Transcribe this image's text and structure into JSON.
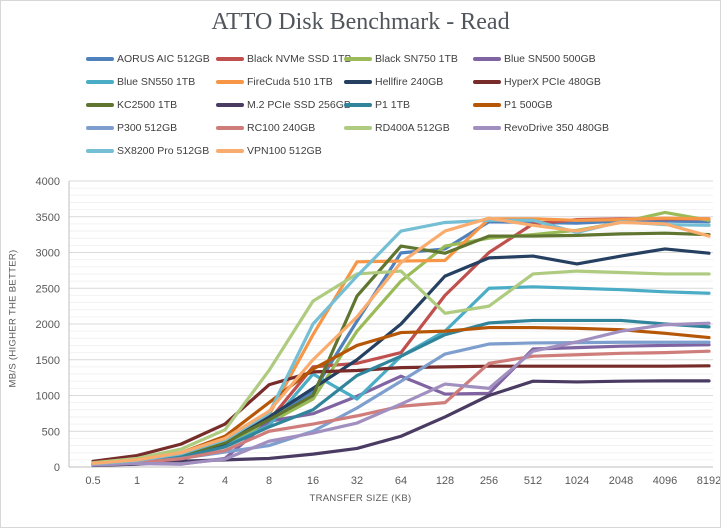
{
  "chart_data": {
    "type": "line",
    "title": "ATTO Disk Benchmark - Read",
    "xlabel": "TRANSFER SIZE (KB)",
    "ylabel": "MB/S (HIGHER THE BETTER)",
    "legend_position": "top",
    "grid": true,
    "ylim": [
      0,
      4000
    ],
    "y_major_step": 500,
    "y_minor_step": 100,
    "x": [
      "0.5",
      "1",
      "2",
      "4",
      "8",
      "16",
      "32",
      "64",
      "128",
      "256",
      "512",
      "1024",
      "2048",
      "4096",
      "8192"
    ],
    "series": [
      {
        "name": "AORUS AIC 512GB",
        "color": "#4F81BD",
        "values": [
          45,
          90,
          180,
          360,
          700,
          1050,
          2040,
          2995,
          3050,
          3430,
          3420,
          3410,
          3440,
          3440,
          3430
        ]
      },
      {
        "name": "Black NVMe SSD 1TB",
        "color": "#C0504D",
        "values": [
          40,
          80,
          160,
          330,
          650,
          1400,
          1450,
          1600,
          2400,
          3000,
          3400,
          3460,
          3470,
          3470,
          3470
        ]
      },
      {
        "name": "Black SN750 1TB",
        "color": "#9BBB59",
        "values": [
          40,
          80,
          160,
          320,
          620,
          950,
          1900,
          2600,
          3090,
          3200,
          3250,
          3310,
          3420,
          3560,
          3450
        ]
      },
      {
        "name": "Blue SN500 500GB",
        "color": "#8064A2",
        "values": [
          25,
          50,
          40,
          120,
          640,
          745,
          990,
          1270,
          1020,
          1030,
          1650,
          1670,
          1690,
          1700,
          1710
        ]
      },
      {
        "name": "Blue SN550 1TB",
        "color": "#4BACC6",
        "values": [
          35,
          70,
          140,
          290,
          580,
          1300,
          950,
          1550,
          1900,
          2500,
          2520,
          2500,
          2480,
          2450,
          2430
        ]
      },
      {
        "name": "FireCuda 510 1TB",
        "color": "#F79646",
        "values": [
          45,
          90,
          180,
          370,
          730,
          1850,
          2870,
          2880,
          2890,
          3470,
          3470,
          3450,
          3460,
          3480,
          3470
        ]
      },
      {
        "name": "Hellfire 240GB",
        "color": "#254061",
        "values": [
          40,
          75,
          150,
          330,
          700,
          1100,
          1500,
          2000,
          2670,
          2925,
          2950,
          2840,
          2950,
          3050,
          2990
        ]
      },
      {
        "name": "HyperX PCIe 480GB",
        "color": "#772C2A",
        "values": [
          80,
          160,
          320,
          600,
          1150,
          1330,
          1350,
          1390,
          1400,
          1410,
          1410,
          1410,
          1410,
          1410,
          1415
        ]
      },
      {
        "name": "KC2500 1TB",
        "color": "#5F7530",
        "values": [
          40,
          80,
          165,
          340,
          660,
          1000,
          2390,
          3090,
          2990,
          3230,
          3230,
          3240,
          3260,
          3270,
          3250
        ]
      },
      {
        "name": "M.2 PCIe SSD 256GB",
        "color": "#4A3B63",
        "values": [
          20,
          40,
          80,
          100,
          120,
          180,
          260,
          430,
          700,
          1000,
          1200,
          1190,
          1200,
          1205,
          1205
        ]
      },
      {
        "name": "P1 1TB",
        "color": "#31859B",
        "values": [
          35,
          70,
          140,
          280,
          560,
          800,
          1280,
          1550,
          1850,
          2015,
          2050,
          2050,
          2050,
          2000,
          1960
        ]
      },
      {
        "name": "P1 500GB",
        "color": "#B65708",
        "values": [
          50,
          100,
          200,
          430,
          900,
          1370,
          1700,
          1880,
          1900,
          1950,
          1950,
          1940,
          1920,
          1870,
          1810
        ]
      },
      {
        "name": "P300 512GB",
        "color": "#7E9FCE",
        "values": [
          30,
          60,
          120,
          210,
          300,
          500,
          825,
          1200,
          1580,
          1720,
          1735,
          1740,
          1745,
          1745,
          1745
        ]
      },
      {
        "name": "RC100 240GB",
        "color": "#CF7D7B",
        "values": [
          30,
          60,
          115,
          230,
          500,
          600,
          715,
          850,
          900,
          1450,
          1550,
          1570,
          1590,
          1600,
          1620
        ]
      },
      {
        "name": "RD400A 512GB",
        "color": "#AECB7F",
        "values": [
          60,
          120,
          250,
          520,
          1350,
          2320,
          2700,
          2740,
          2150,
          2250,
          2700,
          2740,
          2720,
          2700,
          2700
        ]
      },
      {
        "name": "RevoDrive 350 480GB",
        "color": "#A18FC0",
        "values": [
          25,
          50,
          45,
          110,
          360,
          475,
          615,
          880,
          1160,
          1100,
          1620,
          1750,
          1900,
          1990,
          2010
        ]
      },
      {
        "name": "SX8200 Pro 512GB",
        "color": "#74BFD3",
        "values": [
          45,
          90,
          185,
          380,
          750,
          2000,
          2670,
          3300,
          3420,
          3450,
          3450,
          3280,
          3430,
          3390,
          3380
        ]
      },
      {
        "name": "VPN100 512GB",
        "color": "#F9AC6E",
        "values": [
          50,
          100,
          200,
          400,
          780,
          1500,
          2100,
          2860,
          3300,
          3480,
          3380,
          3300,
          3420,
          3400,
          3230
        ]
      }
    ]
  }
}
